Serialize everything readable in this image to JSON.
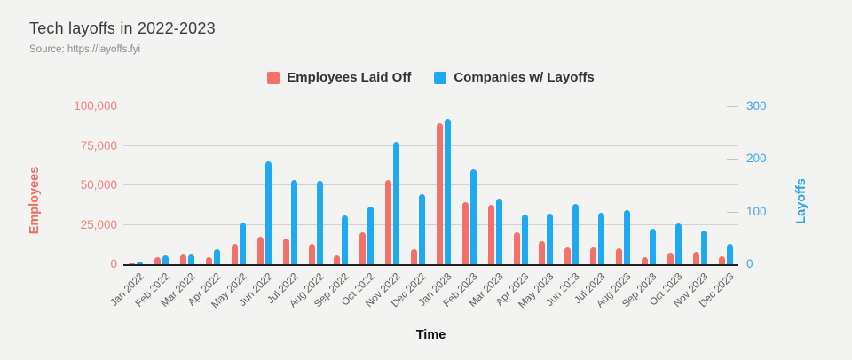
{
  "header": {
    "title": "Tech layoffs in 2022-2023",
    "source": "Source: https://layoffs.fyi"
  },
  "legend": [
    {
      "label": "Employees Laid Off",
      "color": "#f3716a"
    },
    {
      "label": "Companies w/ Layoffs",
      "color": "#1fa9f0"
    }
  ],
  "chart_data": {
    "type": "bar",
    "title": "Tech layoffs in 2022-2023",
    "subtitle": "Source: https://layoffs.fyi",
    "xlabel": "Time",
    "legend_position": "top",
    "grid": true,
    "background": "#f3f3f1",
    "categories": [
      "Jan 2022",
      "Feb 2022",
      "Mar 2022",
      "Apr 2022",
      "May 2022",
      "Jun 2022",
      "Jul 2022",
      "Aug 2022",
      "Sep 2022",
      "Oct 2022",
      "Nov 2022",
      "Dec 2022",
      "Jan 2023",
      "Feb 2023",
      "Mar 2023",
      "Apr 2023",
      "May 2023",
      "Jun 2023",
      "Jul 2023",
      "Aug 2023",
      "Sep 2023",
      "Oct 2023",
      "Nov 2023",
      "Dec 2023"
    ],
    "series": [
      {
        "name": "Employees Laid Off",
        "axis": "left",
        "color": "#f3716a",
        "values": [
          500,
          4400,
          6200,
          4400,
          13000,
          17400,
          16300,
          13200,
          5700,
          20500,
          53500,
          9800,
          89500,
          39500,
          37400,
          20000,
          14800,
          10700,
          10500,
          10200,
          4500,
          7100,
          7900,
          5000
        ]
      },
      {
        "name": "Companies w/ Layoffs",
        "axis": "right",
        "color": "#1fa9f0",
        "values": [
          5,
          17,
          18,
          29,
          79,
          195,
          161,
          159,
          93,
          109,
          232,
          133,
          277,
          181,
          125,
          94,
          96,
          114,
          98,
          103,
          68,
          77,
          64,
          39
        ]
      }
    ],
    "left_axis": {
      "label": "Employees",
      "range": [
        0,
        100000
      ],
      "ticks": [
        0,
        25000,
        50000,
        75000,
        100000
      ],
      "color": "#f0837a"
    },
    "right_axis": {
      "label": "Layoffs",
      "range": [
        0,
        300
      ],
      "ticks": [
        0,
        100,
        200,
        300
      ],
      "color": "#36a9e9"
    }
  }
}
